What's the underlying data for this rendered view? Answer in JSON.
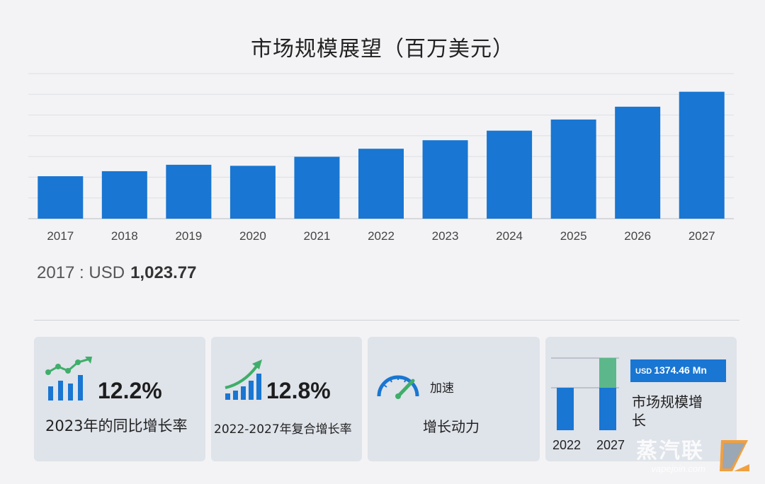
{
  "title": "市场规模展望（百万美元）",
  "chart_data": {
    "type": "bar",
    "title": "市场规模展望（百万美元）",
    "categories": [
      "2017",
      "2018",
      "2019",
      "2020",
      "2021",
      "2022",
      "2023",
      "2024",
      "2025",
      "2026",
      "2027"
    ],
    "values": [
      1023.77,
      1145,
      1300,
      1275,
      1493,
      1687,
      1892,
      2123,
      2392,
      2701,
      3062
    ],
    "ylim": [
      0,
      3500
    ],
    "grid": true,
    "bar_color": "#1976d2",
    "xlabel": "",
    "ylabel": ""
  },
  "base_note": {
    "label": "2017 : USD",
    "value": "1,023.77"
  },
  "cards": {
    "yoy": {
      "value": "12.2%",
      "label": "2023年的同比增长率",
      "icon": "bar-growth-icon"
    },
    "cagr": {
      "value": "12.8%",
      "label": "2022-2027年复合增长率",
      "icon": "rising-bars-icon"
    },
    "momentum": {
      "badge": "加速",
      "label": "增长动力",
      "icon": "speedometer-icon"
    },
    "growth": {
      "usd_unit": "USD",
      "usd_value": "1374.46 Mn",
      "label": "市场规模增长",
      "years": [
        "2022",
        "2027"
      ],
      "icon": "stacked-bars-icon"
    }
  },
  "watermark": {
    "text": "蒸汽联",
    "url": "vapejoin.com"
  },
  "colors": {
    "accent": "#1976d2",
    "green": "#5cb88a",
    "card_bg": "#dfe3ea"
  }
}
